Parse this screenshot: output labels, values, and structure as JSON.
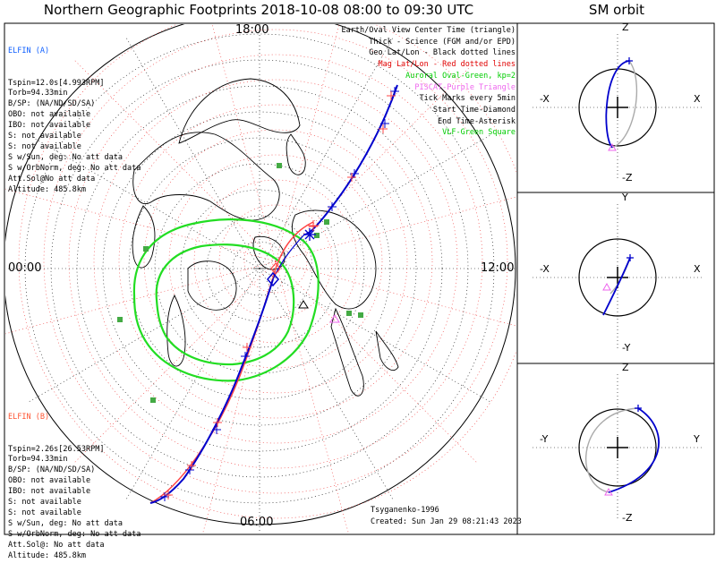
{
  "title": "Northern Geographic Footprints 2018-10-08 08:00 to 09:30 UTC",
  "orbit_title": "SM orbit",
  "time_labels": {
    "top": "18:00",
    "left": "00:00",
    "right": "12:00",
    "bottom": "06:00"
  },
  "elfin_a": {
    "name": "ELFIN (A)",
    "lines": [
      "Tspin=12.0s[4.993RPM]",
      "Torb=94.33min",
      "B/SP: (NA/ND/SD/SA)",
      "OBO: not available",
      "IBO: not available",
      "S: not available",
      "S: not available",
      "S w/Sun, deg: No att data",
      "S w/OrbNorm, deg: No att data",
      "Att.Sol@No att data",
      "Altitude: 485.8km"
    ]
  },
  "elfin_b": {
    "name": "ELFIN (B)",
    "lines": [
      "Tspin=2.26s[26.53RPM]",
      "Torb=94.33min",
      "B/SP: (NA/ND/SD/SA)",
      "OBO: not available",
      "IBO: not available",
      "S: not available",
      "S: not available",
      "S w/Sun, deg: No att data",
      "S w/OrbNorm, deg: No att data",
      "Att.Sol@: No att data",
      "Altitude: 485.8km"
    ]
  },
  "legend": [
    {
      "text": "Earth/Oval View Center Time (triangle)",
      "color": "#000000"
    },
    {
      "text": "Thick - Science (FGM and/or EPD)",
      "color": "#000000"
    },
    {
      "text": "Geo Lat/Lon - Black dotted lines",
      "color": "#000000"
    },
    {
      "text": "Mag Lat/Lon - Red dotted lines",
      "color": "#e00000"
    },
    {
      "text": "Auroral Oval-Green, kp=2",
      "color": "#00cc00"
    },
    {
      "text": "PISCAT-Purple Triangle",
      "color": "#ee66ee"
    },
    {
      "text": "Tick Marks every 5min",
      "color": "#000000"
    },
    {
      "text": "Start Time-Diamond",
      "color": "#000000"
    },
    {
      "text": "End Time-Asterisk",
      "color": "#000000"
    },
    {
      "text": "VLF-Green Square",
      "color": "#00cc00"
    }
  ],
  "model": "Tsyganenko-1996",
  "created": "Created: Sun Jan 29 08:21:43 2023",
  "orbit_panels": [
    {
      "top": "Z",
      "bottom": "-Z",
      "left": "-X",
      "right": "X"
    },
    {
      "top": "Y",
      "bottom": "-Y",
      "left": "-X",
      "right": "X"
    },
    {
      "top": "Z",
      "bottom": "-Z",
      "left": "-Y",
      "right": "Y"
    }
  ],
  "colors": {
    "elfin_a": "#0000cc",
    "elfin_b": "#ff3333",
    "oval": "#22dd22",
    "mag_grid": "#ee3333",
    "piscat": "#ee66ee",
    "vlf": "#44aa44"
  }
}
